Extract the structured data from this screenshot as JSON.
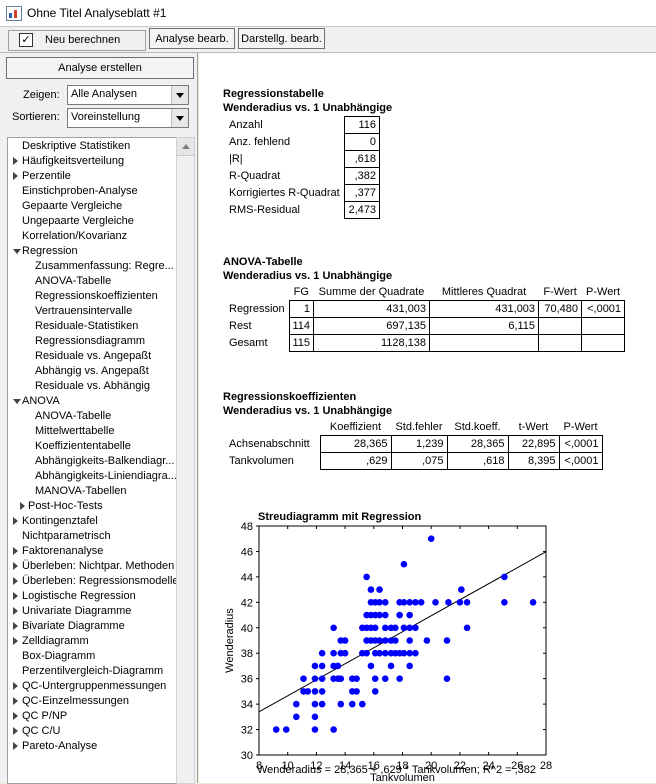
{
  "window": {
    "title": "Ohne Titel Analyseblatt #1"
  },
  "toolbar": {
    "recompute_label": "Neu berechnen",
    "recompute_checked": true,
    "check_mark": "✓",
    "edit_analysis_label": "Analyse bearb.",
    "edit_display_label": "Darstellg. bearb."
  },
  "sidebar": {
    "create_label": "Analyse erstellen",
    "show_label": "Zeigen:",
    "show_value": "Alle Analysen",
    "sort_label": "Sortieren:",
    "sort_value": "Voreinstellung",
    "tree": [
      {
        "label": "Deskriptive Statistiken",
        "indent": 0,
        "toggle": "none"
      },
      {
        "label": "Häufigkeitsverteilung",
        "indent": 0,
        "toggle": "collapsed"
      },
      {
        "label": "Perzentile",
        "indent": 0,
        "toggle": "collapsed"
      },
      {
        "label": "Einstichproben-Analyse",
        "indent": 0,
        "toggle": "none"
      },
      {
        "label": "Gepaarte Vergleiche",
        "indent": 0,
        "toggle": "none"
      },
      {
        "label": "Ungepaarte Vergleiche",
        "indent": 0,
        "toggle": "none"
      },
      {
        "label": "Korrelation/Kovarianz",
        "indent": 0,
        "toggle": "none"
      },
      {
        "label": "Regression",
        "indent": 0,
        "toggle": "expanded"
      },
      {
        "label": "Zusammenfassung: Regre...",
        "indent": 2,
        "toggle": "none"
      },
      {
        "label": "ANOVA-Tabelle",
        "indent": 2,
        "toggle": "none"
      },
      {
        "label": "Regressionskoeffizienten",
        "indent": 2,
        "toggle": "none"
      },
      {
        "label": "Vertrauensintervalle",
        "indent": 2,
        "toggle": "none"
      },
      {
        "label": "Residuale-Statistiken",
        "indent": 2,
        "toggle": "none"
      },
      {
        "label": "Regressionsdiagramm",
        "indent": 2,
        "toggle": "none"
      },
      {
        "label": "Residuale vs. Angepaßt",
        "indent": 2,
        "toggle": "none"
      },
      {
        "label": "Abhängig vs. Angepaßt",
        "indent": 2,
        "toggle": "none"
      },
      {
        "label": "Residuale vs. Abhängig",
        "indent": 2,
        "toggle": "none"
      },
      {
        "label": "ANOVA",
        "indent": 0,
        "toggle": "expanded"
      },
      {
        "label": "ANOVA-Tabelle",
        "indent": 2,
        "toggle": "none"
      },
      {
        "label": "Mittelwerttabelle",
        "indent": 2,
        "toggle": "none"
      },
      {
        "label": "Koeffiziententabelle",
        "indent": 2,
        "toggle": "none"
      },
      {
        "label": "Abhängigkeits-Balkendiagr...",
        "indent": 2,
        "toggle": "none"
      },
      {
        "label": "Abhängigkeits-Liniendiagra...",
        "indent": 2,
        "toggle": "none"
      },
      {
        "label": "MANOVA-Tabellen",
        "indent": 2,
        "toggle": "none"
      },
      {
        "label": "Post-Hoc-Tests",
        "indent": 1,
        "toggle": "collapsed"
      },
      {
        "label": "Kontingenztafel",
        "indent": 0,
        "toggle": "collapsed"
      },
      {
        "label": "Nichtparametrisch",
        "indent": 0,
        "toggle": "none"
      },
      {
        "label": "Faktorenanalyse",
        "indent": 0,
        "toggle": "collapsed"
      },
      {
        "label": "Überleben: Nichtpar. Methoden",
        "indent": 0,
        "toggle": "collapsed"
      },
      {
        "label": "Überleben: Regressionsmodelle",
        "indent": 0,
        "toggle": "collapsed"
      },
      {
        "label": "Logistische Regression",
        "indent": 0,
        "toggle": "collapsed"
      },
      {
        "label": "Univariate Diagramme",
        "indent": 0,
        "toggle": "collapsed"
      },
      {
        "label": "Bivariate Diagramme",
        "indent": 0,
        "toggle": "collapsed"
      },
      {
        "label": "Zelldiagramm",
        "indent": 0,
        "toggle": "collapsed"
      },
      {
        "label": "Box-Diagramm",
        "indent": 0,
        "toggle": "none"
      },
      {
        "label": "Perzentilvergleich-Diagramm",
        "indent": 0,
        "toggle": "none"
      },
      {
        "label": "QC-Untergruppenmessungen",
        "indent": 0,
        "toggle": "collapsed"
      },
      {
        "label": "QC-Einzelmessungen",
        "indent": 0,
        "toggle": "collapsed"
      },
      {
        "label": "QC P/NP",
        "indent": 0,
        "toggle": "collapsed"
      },
      {
        "label": "QC C/U",
        "indent": 0,
        "toggle": "collapsed"
      },
      {
        "label": "Pareto-Analyse",
        "indent": 0,
        "toggle": "collapsed"
      }
    ]
  },
  "regression_table": {
    "title": "Regressionstabelle",
    "subtitle": "Wenderadius vs. 1 Unabhängige",
    "rows": [
      {
        "label": "Anzahl",
        "value": "116"
      },
      {
        "label": "Anz. fehlend",
        "value": "0"
      },
      {
        "label": "|R|",
        "value": ",618"
      },
      {
        "label": "R-Quadrat",
        "value": ",382"
      },
      {
        "label": "Korrigiertes R-Quadrat",
        "value": ",377"
      },
      {
        "label": "RMS-Residual",
        "value": "2,473"
      }
    ]
  },
  "anova_table": {
    "title": "ANOVA-Tabelle",
    "subtitle": "Wenderadius vs. 1 Unabhängige",
    "headers": [
      "FG",
      "Summe der Quadrate",
      "Mittleres Quadrat",
      "F-Wert",
      "P-Wert"
    ],
    "rows": [
      {
        "label": "Regression",
        "cells": [
          "1",
          "431,003",
          "431,003",
          "70,480",
          "<,0001"
        ]
      },
      {
        "label": "Rest",
        "cells": [
          "114",
          "697,135",
          "6,115",
          "",
          ""
        ]
      },
      {
        "label": "Gesamt",
        "cells": [
          "115",
          "1128,138",
          "",
          "",
          ""
        ]
      }
    ]
  },
  "coef_table": {
    "title": "Regressionskoeffizienten",
    "subtitle": "Wenderadius vs. 1 Unabhängige",
    "headers": [
      "Koeffizient",
      "Std.fehler",
      "Std.koeff.",
      "t-Wert",
      "P-Wert"
    ],
    "rows": [
      {
        "label": "Achsenabschnitt",
        "cells": [
          "28,365",
          "1,239",
          "28,365",
          "22,895",
          "<,0001"
        ]
      },
      {
        "label": "Tankvolumen",
        "cells": [
          ",629",
          ",075",
          ",618",
          "8,395",
          "<,0001"
        ]
      }
    ]
  },
  "chart_data": {
    "type": "scatter",
    "title": "Streudiagramm mit Regression",
    "xlabel": "Tankvolumen",
    "ylabel": "Wenderadius",
    "xlim": [
      8,
      28
    ],
    "ylim": [
      30,
      48
    ],
    "x_ticks": [
      8,
      10,
      12,
      14,
      16,
      18,
      20,
      22,
      24,
      26,
      28
    ],
    "y_ticks": [
      30,
      32,
      34,
      36,
      38,
      40,
      42,
      44,
      46,
      48
    ],
    "point_color": "#0000ff",
    "line_color": "#000000",
    "regression": {
      "intercept": 28.365,
      "slope": 0.629
    },
    "equation": "Wenderadius = 28,365 + ,629 * Tankvolumen; R^2 = ,382",
    "points": [
      [
        9.2,
        32
      ],
      [
        9.9,
        32
      ],
      [
        10.6,
        33
      ],
      [
        10.6,
        34
      ],
      [
        11.1,
        35
      ],
      [
        11.1,
        36
      ],
      [
        11.4,
        35
      ],
      [
        11.9,
        32
      ],
      [
        11.9,
        33
      ],
      [
        11.9,
        34
      ],
      [
        11.9,
        35
      ],
      [
        11.9,
        36
      ],
      [
        11.9,
        37
      ],
      [
        12.4,
        34
      ],
      [
        12.4,
        35
      ],
      [
        12.4,
        36
      ],
      [
        12.4,
        37
      ],
      [
        12.4,
        38
      ],
      [
        13.2,
        32
      ],
      [
        13.2,
        36
      ],
      [
        13.2,
        37
      ],
      [
        13.2,
        38
      ],
      [
        13.2,
        40
      ],
      [
        13.5,
        36
      ],
      [
        13.5,
        37
      ],
      [
        13.7,
        34
      ],
      [
        13.7,
        36
      ],
      [
        13.7,
        38
      ],
      [
        13.7,
        39
      ],
      [
        14.0,
        38
      ],
      [
        14.0,
        39
      ],
      [
        14.5,
        34
      ],
      [
        14.5,
        35
      ],
      [
        14.5,
        36
      ],
      [
        14.8,
        35
      ],
      [
        14.8,
        36
      ],
      [
        15.2,
        34
      ],
      [
        15.2,
        38
      ],
      [
        15.2,
        40
      ],
      [
        15.5,
        38
      ],
      [
        15.5,
        39
      ],
      [
        15.5,
        40
      ],
      [
        15.5,
        41
      ],
      [
        15.5,
        44
      ],
      [
        15.8,
        37
      ],
      [
        15.8,
        39
      ],
      [
        15.8,
        40
      ],
      [
        15.8,
        41
      ],
      [
        15.8,
        42
      ],
      [
        15.8,
        43
      ],
      [
        16.1,
        35
      ],
      [
        16.1,
        36
      ],
      [
        16.1,
        38
      ],
      [
        16.1,
        39
      ],
      [
        16.1,
        40
      ],
      [
        16.1,
        41
      ],
      [
        16.1,
        42
      ],
      [
        16.4,
        38
      ],
      [
        16.4,
        39
      ],
      [
        16.4,
        41
      ],
      [
        16.4,
        42
      ],
      [
        16.4,
        43
      ],
      [
        16.8,
        36
      ],
      [
        16.8,
        38
      ],
      [
        16.8,
        39
      ],
      [
        16.8,
        40
      ],
      [
        16.8,
        41
      ],
      [
        16.8,
        42
      ],
      [
        17.2,
        37
      ],
      [
        17.2,
        38
      ],
      [
        17.2,
        39
      ],
      [
        17.2,
        40
      ],
      [
        17.5,
        38
      ],
      [
        17.5,
        39
      ],
      [
        17.5,
        40
      ],
      [
        17.8,
        36
      ],
      [
        17.8,
        38
      ],
      [
        17.8,
        41
      ],
      [
        17.8,
        42
      ],
      [
        18.1,
        38
      ],
      [
        18.1,
        40
      ],
      [
        18.1,
        42
      ],
      [
        18.1,
        45
      ],
      [
        18.5,
        37
      ],
      [
        18.5,
        38
      ],
      [
        18.5,
        39
      ],
      [
        18.5,
        40
      ],
      [
        18.5,
        41
      ],
      [
        18.5,
        42
      ],
      [
        18.9,
        38
      ],
      [
        18.9,
        40
      ],
      [
        18.9,
        42
      ],
      [
        19.3,
        42
      ],
      [
        19.7,
        39
      ],
      [
        20.0,
        47
      ],
      [
        20.3,
        42
      ],
      [
        21.1,
        36
      ],
      [
        21.1,
        39
      ],
      [
        21.2,
        42
      ],
      [
        22.0,
        42
      ],
      [
        22.1,
        43
      ],
      [
        22.5,
        40
      ],
      [
        22.5,
        42
      ],
      [
        25.1,
        42
      ],
      [
        25.1,
        44
      ],
      [
        27.1,
        42
      ]
    ]
  }
}
